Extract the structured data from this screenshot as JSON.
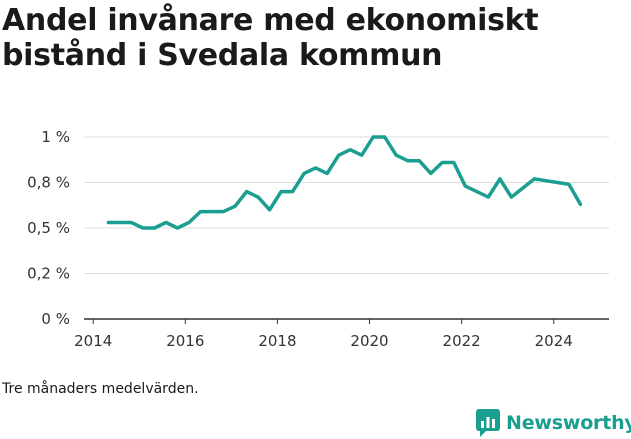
{
  "title": "Andel invånare med ekonomiskt bistånd i Svedala kommun",
  "note": "Tre månaders medelvärden.",
  "brand": {
    "name": "Newsworthy",
    "color": "#1a9e8f"
  },
  "chart_data": {
    "type": "line",
    "title": "Andel invånare med ekonomiskt bistånd i Svedala kommun",
    "xlabel": "",
    "ylabel": "",
    "xlim": [
      2013.8,
      2025.2
    ],
    "ylim": [
      0,
      1.0
    ],
    "xticks": [
      2014,
      2016,
      2018,
      2020,
      2022,
      2024
    ],
    "xtick_labels": [
      "2014",
      "2016",
      "2018",
      "2020",
      "2022",
      "2024"
    ],
    "yticks": [
      0,
      0.25,
      0.5,
      0.75,
      1.0
    ],
    "ytick_labels": [
      "0 %",
      "0,2 %",
      "0,5 %",
      "0,8 %",
      "1 %"
    ],
    "grid": "horizontal",
    "color": "#1a9e8f",
    "series": [
      {
        "x": [
          2014.33,
          2014.58,
          2014.83,
          2015.08,
          2015.33,
          2015.58,
          2015.83,
          2016.08,
          2016.33,
          2016.58,
          2016.83,
          2017.08,
          2017.33,
          2017.58,
          2017.83,
          2018.08,
          2018.33,
          2018.58,
          2018.83,
          2019.08,
          2019.33,
          2019.58,
          2019.83,
          2020.08,
          2020.33,
          2020.58,
          2020.83,
          2021.08,
          2021.33,
          2021.58,
          2021.83,
          2022.08,
          2022.33,
          2022.58,
          2022.83,
          2023.08,
          2023.33,
          2023.58,
          2023.83,
          2024.08,
          2024.33,
          2024.58
        ],
        "values": [
          0.53,
          0.53,
          0.53,
          0.5,
          0.5,
          0.53,
          0.5,
          0.53,
          0.59,
          0.59,
          0.59,
          0.62,
          0.7,
          0.67,
          0.6,
          0.7,
          0.7,
          0.8,
          0.83,
          0.8,
          0.9,
          0.93,
          0.9,
          1.0,
          1.0,
          0.9,
          0.87,
          0.87,
          0.8,
          0.86,
          0.86,
          0.73,
          0.7,
          0.67,
          0.77,
          0.67,
          0.72,
          0.77,
          0.76,
          0.75,
          0.74,
          0.63
        ]
      }
    ]
  }
}
